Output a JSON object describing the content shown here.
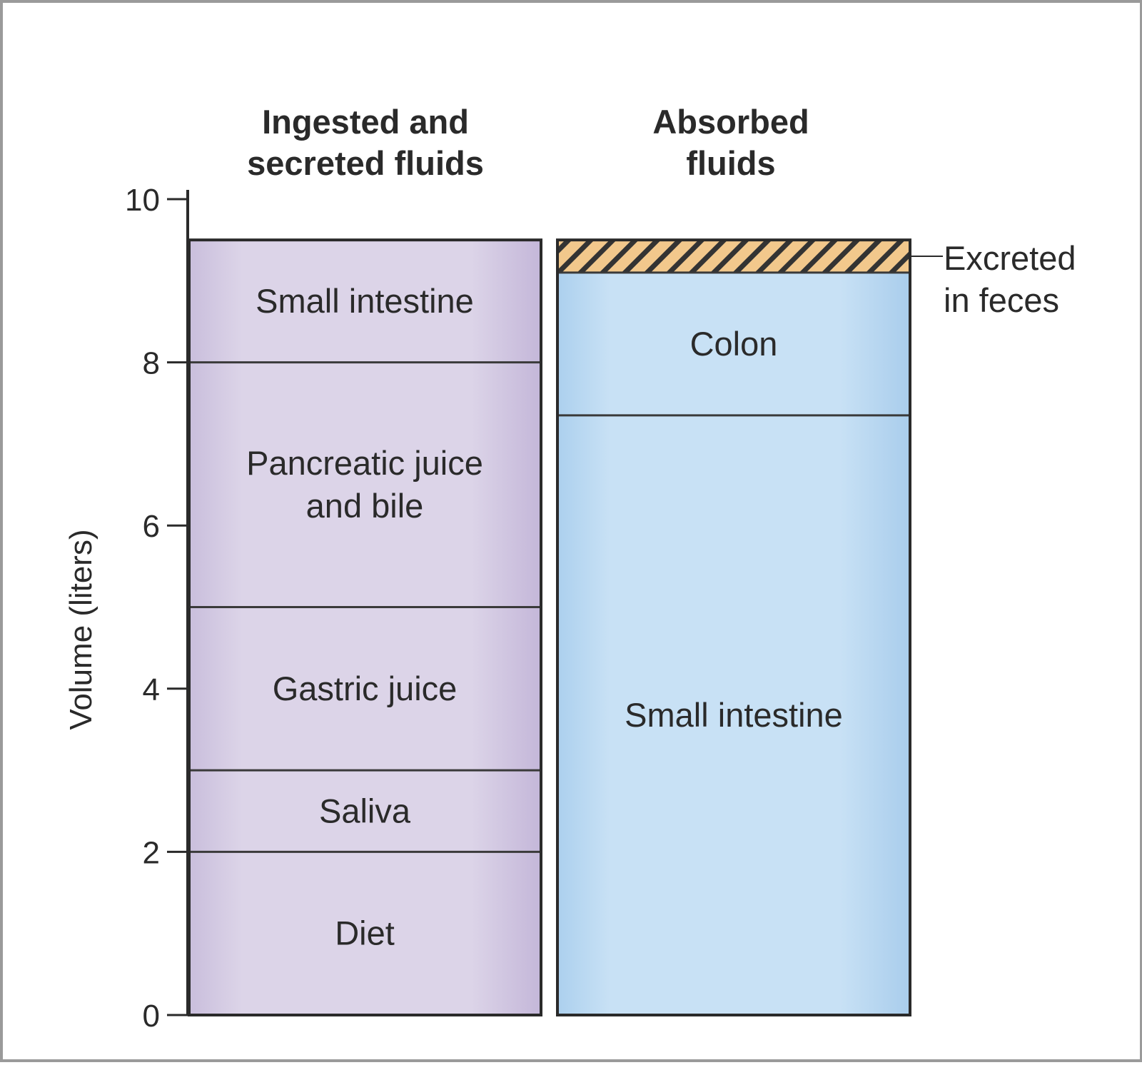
{
  "chart_data": {
    "type": "bar",
    "stacked": true,
    "ylabel": "Volume (liters)",
    "ylim": [
      0,
      10
    ],
    "yticks": [
      "0",
      "2",
      "4",
      "6",
      "8",
      "10"
    ],
    "categories": [
      {
        "header": [
          "Ingested and",
          "secreted fluids"
        ]
      },
      {
        "header": [
          "Absorbed",
          "fluids"
        ]
      }
    ],
    "columns": [
      {
        "color": "#d9d1e6",
        "segments": [
          {
            "lines": [
              "Diet"
            ],
            "from": 0,
            "to": 2
          },
          {
            "lines": [
              "Saliva"
            ],
            "from": 2,
            "to": 3
          },
          {
            "lines": [
              "Gastric juice"
            ],
            "from": 3,
            "to": 5
          },
          {
            "lines": [
              "Pancreatic juice",
              "and bile"
            ],
            "from": 5,
            "to": 8
          },
          {
            "lines": [
              "Small intestine"
            ],
            "from": 8,
            "to": 9.5
          }
        ]
      },
      {
        "color": "#c6def4",
        "segments": [
          {
            "lines": [
              "Small intestine"
            ],
            "from": 0,
            "to": 7.35
          },
          {
            "lines": [
              "Colon"
            ],
            "from": 7.35,
            "to": 9.1
          },
          {
            "lines": [],
            "from": 9.1,
            "to": 9.5,
            "hatched": true,
            "hatch_color": "#f2c88c"
          }
        ]
      }
    ],
    "annotation": [
      "Excreted",
      "in feces"
    ]
  }
}
